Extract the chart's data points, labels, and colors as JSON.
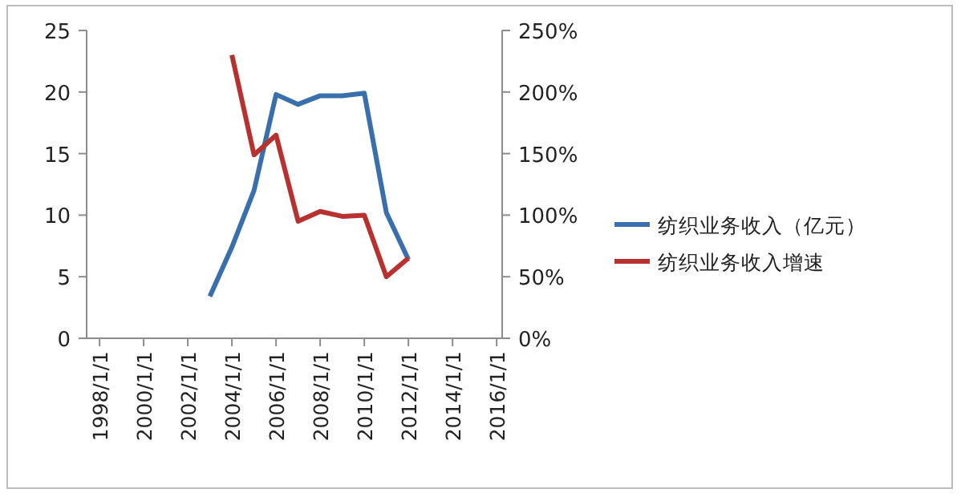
{
  "chart_data": {
    "type": "line",
    "x": [
      "2003-01-01",
      "2004-01-01",
      "2005-01-01",
      "2006-01-01",
      "2007-01-01",
      "2008-01-01",
      "2009-01-01",
      "2010-01-01",
      "2011-01-01",
      "2012-01-01"
    ],
    "series": [
      {
        "name": "纺织业务收入（亿元）",
        "color": "#3a6fae",
        "values": [
          3.4,
          7.4,
          12.0,
          19.8,
          19.0,
          19.7,
          19.7,
          19.9,
          10.2,
          6.4
        ]
      },
      {
        "name": "纺织业务收入增速",
        "color": "#b8312f",
        "axis": "y2",
        "values": [
          null,
          230,
          149,
          165,
          95,
          103,
          99,
          100,
          50,
          65
        ]
      }
    ],
    "xlim": [
      "1997-06-01",
      "2016-04-01"
    ],
    "xticks": [
      {
        "value": "1998-01-01",
        "label": "1998/1/1"
      },
      {
        "value": "2000-01-01",
        "label": "2000/1/1"
      },
      {
        "value": "2002-01-01",
        "label": "2002/1/1"
      },
      {
        "value": "2004-01-01",
        "label": "2004/1/1"
      },
      {
        "value": "2006-01-01",
        "label": "2006/1/1"
      },
      {
        "value": "2008-01-01",
        "label": "2008/1/1"
      },
      {
        "value": "2010-01-01",
        "label": "2010/1/1"
      },
      {
        "value": "2012-01-01",
        "label": "2012/1/1"
      },
      {
        "value": "2014-01-01",
        "label": "2014/1/1"
      },
      {
        "value": "2016-01-01",
        "label": "2016/1/1"
      }
    ],
    "ylim": [
      0,
      25
    ],
    "yticks": [
      0,
      5,
      10,
      15,
      20,
      25
    ],
    "y2lim": [
      0,
      250
    ],
    "y2ticks": [
      {
        "value": 0,
        "label": "0%"
      },
      {
        "value": 50,
        "label": "50%"
      },
      {
        "value": 100,
        "label": "100%"
      },
      {
        "value": 150,
        "label": "150%"
      },
      {
        "value": 200,
        "label": "200%"
      },
      {
        "value": 250,
        "label": "250%"
      }
    ],
    "grid": false,
    "legend": "right",
    "line_style": "solid",
    "marker": "none"
  }
}
